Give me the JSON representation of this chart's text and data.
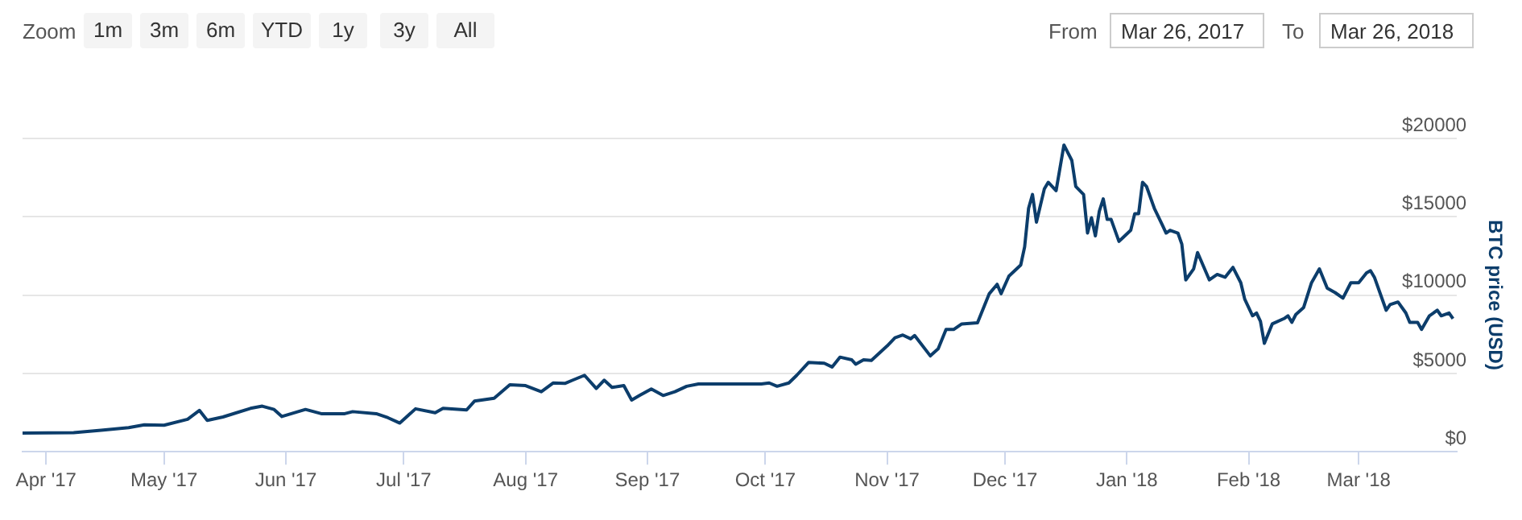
{
  "chart_data": {
    "type": "line",
    "ylabel": "BTC price (USD)",
    "annotations": [
      "Zoom",
      "1m",
      "3m",
      "6m",
      "YTD",
      "1y",
      "3y",
      "All",
      "From",
      "Mar 26, 2017",
      "To",
      "Mar 26, 2018"
    ],
    "xlim": [
      "2017-03-26",
      "2018-03-26"
    ],
    "xticks": [
      {
        "value": "2017-04-01",
        "label": "Apr '17"
      },
      {
        "value": "2017-05-01",
        "label": "May '17"
      },
      {
        "value": "2017-06-01",
        "label": "Jun '17"
      },
      {
        "value": "2017-07-01",
        "label": "Jul '17"
      },
      {
        "value": "2017-08-01",
        "label": "Aug '17"
      },
      {
        "value": "2017-09-01",
        "label": "Sep '17"
      },
      {
        "value": "2017-10-01",
        "label": "Oct '17"
      },
      {
        "value": "2017-11-01",
        "label": "Nov '17"
      },
      {
        "value": "2017-12-01",
        "label": "Dec '17"
      },
      {
        "value": "2018-01-01",
        "label": "Jan '18"
      },
      {
        "value": "2018-02-01",
        "label": "Feb '18"
      },
      {
        "value": "2018-03-01",
        "label": "Mar '18"
      }
    ],
    "ylim": [
      0,
      20000
    ],
    "yticks": [
      {
        "value": 0,
        "label": "$0"
      },
      {
        "value": 5000,
        "label": "$5000"
      },
      {
        "value": 10000,
        "label": "$10000"
      },
      {
        "value": 15000,
        "label": "$15000"
      },
      {
        "value": 20000,
        "label": "$20000"
      }
    ],
    "grid": "y",
    "legend": false,
    "marker": "none",
    "line_style": "solid",
    "series": [
      {
        "color": "#0c3d6b",
        "x": [
          "2017-03-26",
          "2017-04-08",
          "2017-04-15",
          "2017-04-22",
          "2017-04-26",
          "2017-05-01",
          "2017-05-07",
          "2017-05-10",
          "2017-05-12",
          "2017-05-16",
          "2017-05-23",
          "2017-05-26",
          "2017-05-29",
          "2017-05-31",
          "2017-06-06",
          "2017-06-10",
          "2017-06-16",
          "2017-06-18",
          "2017-06-24",
          "2017-06-27",
          "2017-06-30",
          "2017-07-04",
          "2017-07-09",
          "2017-07-11",
          "2017-07-17",
          "2017-07-19",
          "2017-07-24",
          "2017-07-28",
          "2017-08-01",
          "2017-08-05",
          "2017-08-08",
          "2017-08-11",
          "2017-08-13",
          "2017-08-16",
          "2017-08-19",
          "2017-08-21",
          "2017-08-23",
          "2017-08-26",
          "2017-08-28",
          "2017-08-30",
          "2017-09-02",
          "2017-09-05",
          "2017-09-08",
          "2017-09-11",
          "2017-09-14",
          "2017-09-30",
          "2017-10-02",
          "2017-10-04",
          "2017-10-07",
          "2017-10-09",
          "2017-10-12",
          "2017-10-16",
          "2017-10-18",
          "2017-10-20",
          "2017-10-23",
          "2017-10-24",
          "2017-10-26",
          "2017-10-28",
          "2017-11-01",
          "2017-11-03",
          "2017-11-05",
          "2017-11-07",
          "2017-11-08",
          "2017-11-12",
          "2017-11-14",
          "2017-11-16",
          "2017-11-18",
          "2017-11-20",
          "2017-11-24",
          "2017-11-27",
          "2017-11-29",
          "2017-11-30",
          "2017-12-02",
          "2017-12-05",
          "2017-12-06",
          "2017-12-07",
          "2017-12-08",
          "2017-12-09",
          "2017-12-11",
          "2017-12-12",
          "2017-12-14",
          "2017-12-16",
          "2017-12-18",
          "2017-12-19",
          "2017-12-21",
          "2017-12-22",
          "2017-12-23",
          "2017-12-24",
          "2017-12-25",
          "2017-12-26",
          "2017-12-27",
          "2017-12-28",
          "2017-12-30",
          "2017-12-31",
          "2018-01-02",
          "2018-01-03",
          "2018-01-04",
          "2018-01-05",
          "2018-01-06",
          "2018-01-08",
          "2018-01-10",
          "2018-01-11",
          "2018-01-12",
          "2018-01-14",
          "2018-01-15",
          "2018-01-16",
          "2018-01-18",
          "2018-01-19",
          "2018-01-22",
          "2018-01-24",
          "2018-01-26",
          "2018-01-28",
          "2018-01-30",
          "2018-01-31",
          "2018-02-02",
          "2018-02-03",
          "2018-02-04",
          "2018-02-05",
          "2018-02-07",
          "2018-02-10",
          "2018-02-11",
          "2018-02-12",
          "2018-02-13",
          "2018-02-15",
          "2018-02-17",
          "2018-02-19",
          "2018-02-21",
          "2018-02-23",
          "2018-02-25",
          "2018-02-27",
          "2018-03-01",
          "2018-03-03",
          "2018-03-04",
          "2018-03-05",
          "2018-03-08",
          "2018-03-09",
          "2018-03-11",
          "2018-03-13",
          "2018-03-14",
          "2018-03-16",
          "2018-03-17",
          "2018-03-19",
          "2018-03-21",
          "2018-03-22",
          "2018-03-24",
          "2018-03-25"
        ],
        "values": [
          1190,
          1220,
          1370,
          1540,
          1720,
          1690,
          2070,
          2640,
          2000,
          2220,
          2770,
          2910,
          2700,
          2250,
          2700,
          2430,
          2430,
          2560,
          2430,
          2170,
          1830,
          2740,
          2490,
          2770,
          2670,
          3230,
          3410,
          4280,
          4220,
          3830,
          4390,
          4360,
          4570,
          4880,
          4040,
          4570,
          4110,
          4220,
          3300,
          3590,
          4010,
          3590,
          3830,
          4180,
          4330,
          4330,
          4390,
          4180,
          4390,
          4880,
          5700,
          5650,
          5410,
          6040,
          5870,
          5590,
          5870,
          5830,
          6750,
          7280,
          7450,
          7210,
          7420,
          6120,
          6570,
          7810,
          7810,
          8160,
          8230,
          10090,
          10690,
          10090,
          11210,
          11920,
          13080,
          15540,
          16420,
          14660,
          16770,
          17200,
          16670,
          19580,
          18600,
          16940,
          16420,
          13960,
          14940,
          13780,
          15360,
          16140,
          14830,
          14830,
          13430,
          13670,
          14140,
          15190,
          15190,
          17200,
          16940,
          15540,
          14490,
          13960,
          14140,
          13960,
          13250,
          10970,
          11670,
          12720,
          10970,
          11320,
          11140,
          11770,
          10790,
          9740,
          8680,
          8860,
          8330,
          6920,
          8160,
          8500,
          8680,
          8260,
          8760,
          9210,
          10790,
          11670,
          10440,
          10160,
          9810,
          10790,
          10790,
          11420,
          11560,
          11140,
          9030,
          9390,
          9560,
          8860,
          8260,
          8260,
          7810,
          8680,
          9030,
          8680,
          8860,
          8500
        ]
      }
    ]
  }
}
